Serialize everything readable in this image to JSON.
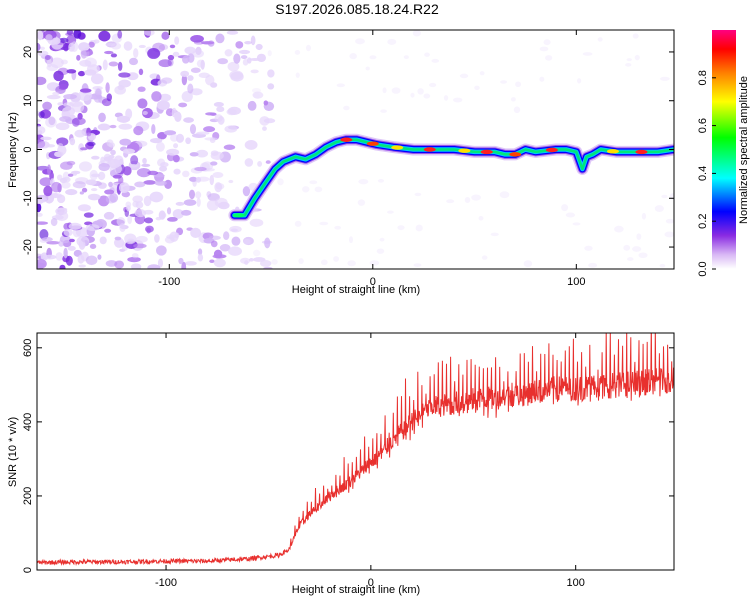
{
  "figure_title": "S197.2026.085.18.24.R22",
  "chart_data": [
    {
      "type": "heatmap",
      "title": "S197.2026.085.18.24.R22",
      "xlabel": "Height of straight line (km)",
      "ylabel": "Frequency (Hz)",
      "xlim": [
        -165,
        148
      ],
      "ylim": [
        -24.5,
        24.5
      ],
      "xticks": [
        -100,
        0,
        100
      ],
      "yticks": [
        -20,
        -10,
        0,
        10,
        20
      ],
      "colorbar": {
        "label": "Normalized spectral amplitude",
        "range": [
          0,
          1
        ],
        "ticks": [
          0.0,
          0.2,
          0.4,
          0.6,
          0.8
        ],
        "colormap": [
          "#ffffff",
          "#8a2be2",
          "#0000ff",
          "#00ffff",
          "#00ff00",
          "#ffff00",
          "#ff8000",
          "#ff0000",
          "#ff0080"
        ]
      },
      "ridge_trace": {
        "x": [
          -68,
          -63,
          -58,
          -53,
          -48,
          -44,
          -38,
          -33,
          -28,
          -23,
          -18,
          -13,
          -8,
          -3,
          2,
          10,
          20,
          30,
          40,
          50,
          60,
          65,
          70,
          75,
          80,
          90,
          95,
          100,
          103,
          105,
          108,
          112,
          120,
          130,
          140,
          148
        ],
        "y": [
          -13.5,
          -13.5,
          -10,
          -7,
          -4,
          -2.5,
          -1.5,
          -2,
          -1,
          0.5,
          1.5,
          2,
          2,
          1.5,
          1,
          0.5,
          0,
          0,
          0,
          -0.5,
          -0.5,
          -1,
          -1,
          0,
          -0.5,
          0,
          0,
          -0.5,
          -4,
          -1.5,
          -1,
          0,
          -0.5,
          -0.5,
          -0.5,
          0
        ]
      }
    },
    {
      "type": "line",
      "title": "",
      "xlabel": "Height of straight line (km)",
      "ylabel": "SNR (10 * v/v)",
      "xlim": [
        -163,
        148
      ],
      "ylim": [
        0,
        640
      ],
      "xticks": [
        -100,
        0,
        100
      ],
      "yticks": [
        0,
        200,
        400,
        600
      ],
      "series": [
        {
          "name": "SNR",
          "color": "#e8302e",
          "x": [
            -163,
            -140,
            -120,
            -100,
            -80,
            -60,
            -45,
            -40,
            -35,
            -30,
            -25,
            -20,
            -15,
            -10,
            -5,
            0,
            5,
            10,
            15,
            20,
            25,
            30,
            40,
            50,
            60,
            70,
            80,
            90,
            100,
            110,
            120,
            130,
            140,
            148
          ],
          "y": [
            20,
            22,
            22,
            24,
            24,
            30,
            40,
            55,
            120,
            150,
            175,
            200,
            220,
            240,
            265,
            290,
            315,
            345,
            375,
            400,
            420,
            440,
            450,
            460,
            465,
            470,
            480,
            490,
            490,
            495,
            500,
            505,
            510,
            515
          ]
        }
      ]
    }
  ]
}
